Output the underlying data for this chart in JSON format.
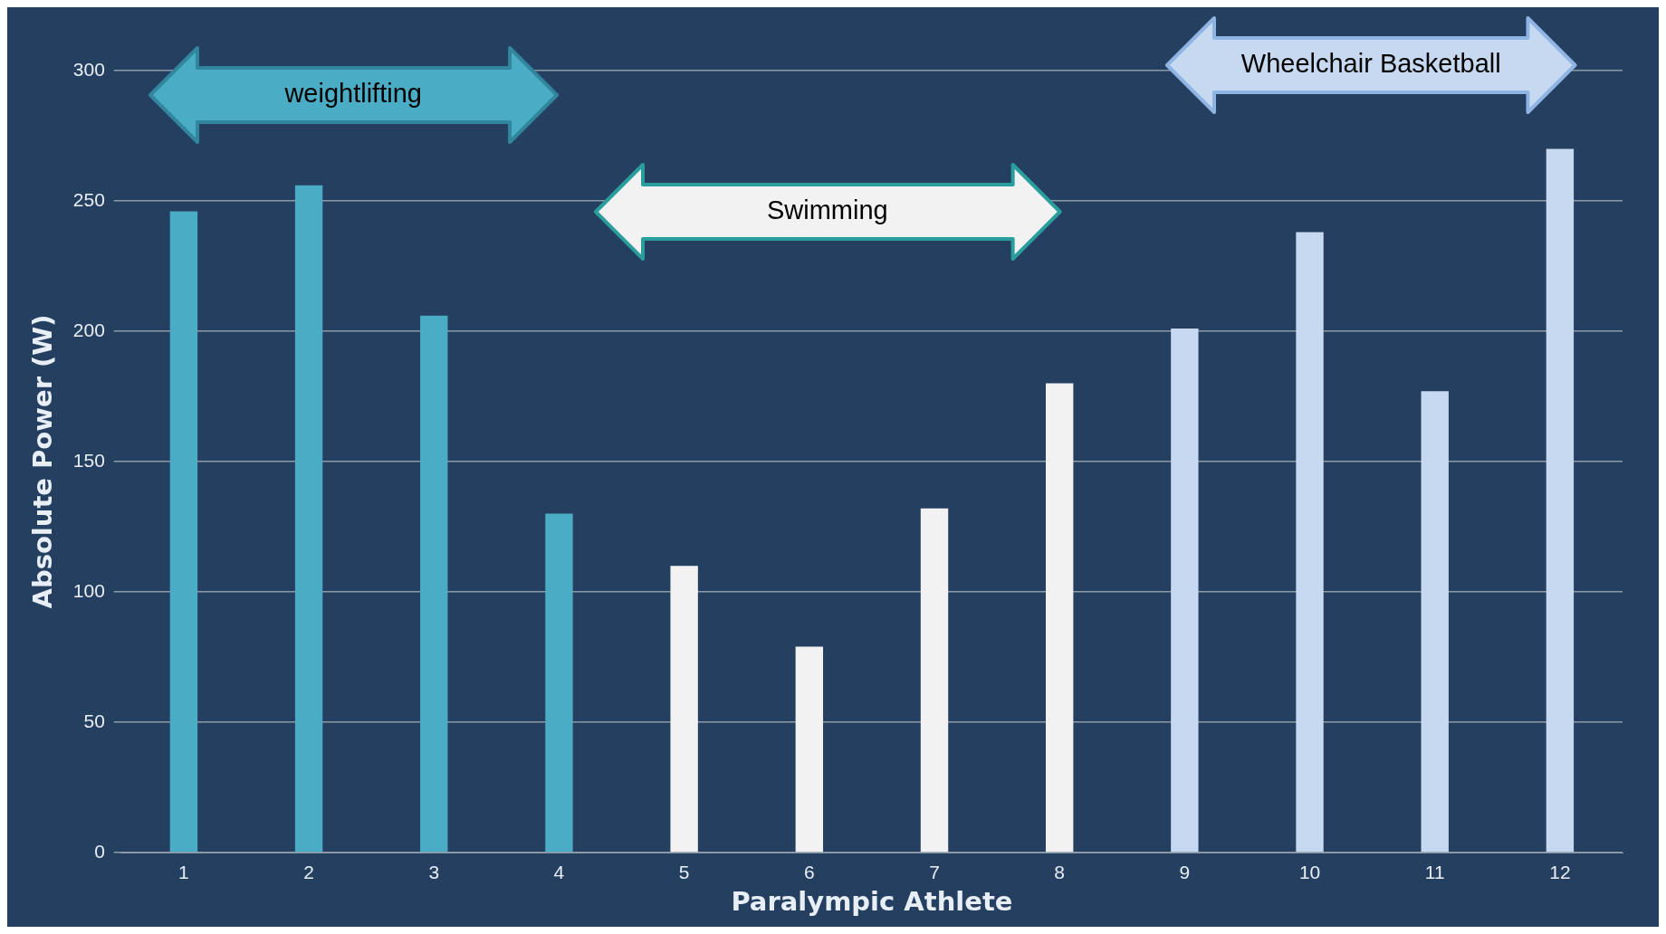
{
  "chart_data": {
    "type": "bar",
    "xlabel": "Paralympic Athlete",
    "ylabel": "Absolute Power (W)",
    "categories": [
      "1",
      "2",
      "3",
      "4",
      "5",
      "6",
      "7",
      "8",
      "9",
      "10",
      "11",
      "12"
    ],
    "values": [
      246,
      256,
      206,
      130,
      110,
      79,
      132,
      180,
      201,
      238,
      177,
      270
    ],
    "colors": [
      "#4bacc6",
      "#4bacc6",
      "#4bacc6",
      "#4bacc6",
      "#f2f2f2",
      "#f2f2f2",
      "#f2f2f2",
      "#f2f2f2",
      "#c6d9f1",
      "#c6d9f1",
      "#c6d9f1",
      "#c6d9f1"
    ],
    "ylim": [
      0,
      300
    ],
    "yticks": [
      0,
      50,
      100,
      150,
      200,
      250,
      300
    ],
    "grid": "y",
    "legend": false,
    "annotations": [
      "weightlifting",
      "Swimming",
      "Wheelchair Basketball"
    ]
  }
}
